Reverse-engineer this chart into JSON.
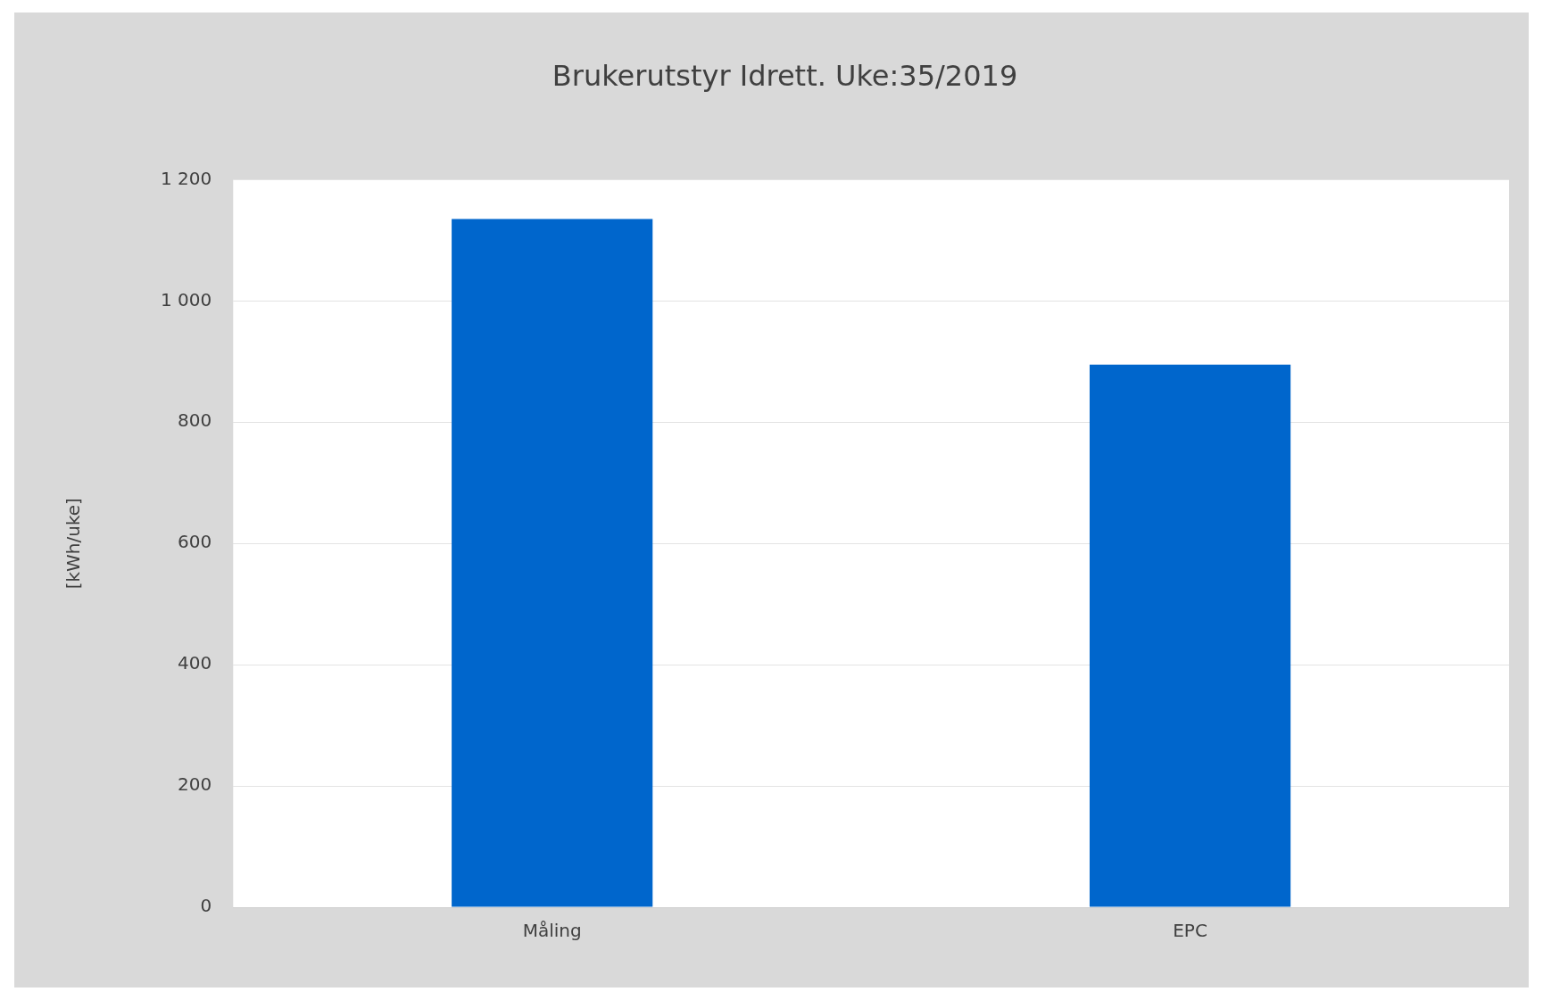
{
  "chart_data": {
    "type": "bar",
    "title": "Brukerutstyr Idrett. Uke:35/2019",
    "ylabel": "[kWh/uke]",
    "categories": [
      "Måling",
      "EPC"
    ],
    "series": [
      {
        "color": "#0066cc",
        "values": [
          1135,
          895
        ]
      }
    ],
    "ylim": [
      0,
      1200
    ],
    "yticks": [
      0,
      200,
      400,
      600,
      800,
      {
        "value": 1000,
        "label": "1 000"
      },
      {
        "value": 1200,
        "label": "1 200"
      }
    ],
    "grid": "y",
    "legend": false
  }
}
